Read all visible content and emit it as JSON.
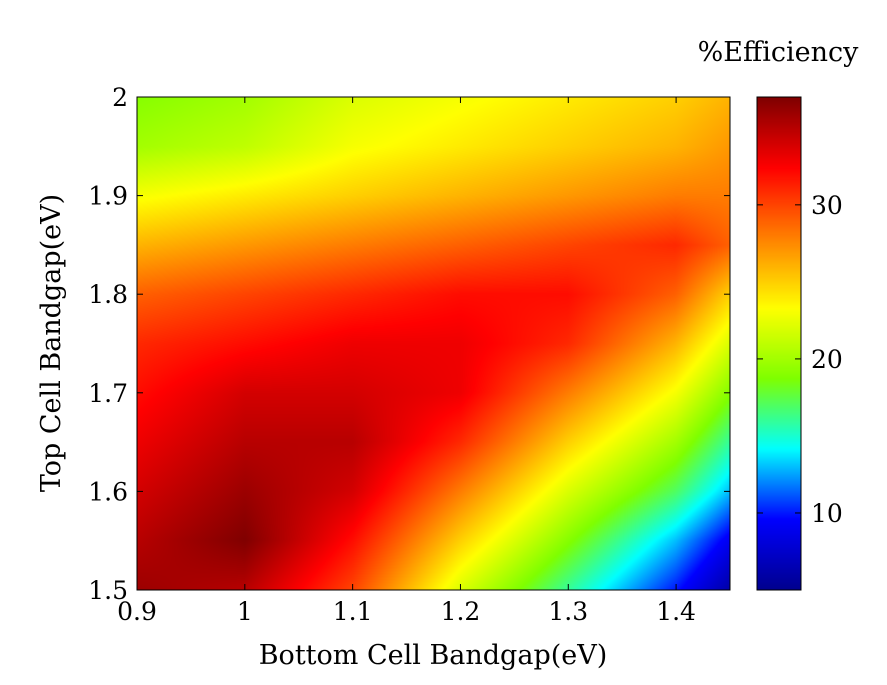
{
  "chart_data": {
    "type": "heatmap",
    "xlabel": "Bottom Cell Bandgap(eV)",
    "ylabel": "Top Cell Bandgap(eV)",
    "colorbar_label": "%Efficiency",
    "xlim": [
      0.9,
      1.45
    ],
    "ylim": [
      1.5,
      2.0
    ],
    "clim": [
      5,
      37
    ],
    "x_ticks": [
      "0.9",
      "1",
      "1.1",
      "1.2",
      "1.3",
      "1.4"
    ],
    "y_ticks": [
      "1.5",
      "1.6",
      "1.7",
      "1.8",
      "1.9",
      "2"
    ],
    "colorbar_ticks": [
      "10",
      "20",
      "30"
    ],
    "colormap": [
      "#00008f",
      "#0000ff",
      "#00ffff",
      "#7fff00",
      "#ffff00",
      "#ff8000",
      "#ff0000",
      "#800000"
    ],
    "x": [
      0.9,
      1.0,
      1.1,
      1.2,
      1.3,
      1.4,
      1.45
    ],
    "y": [
      1.5,
      1.55,
      1.6,
      1.65,
      1.7,
      1.75,
      1.8,
      1.85,
      1.9,
      1.95,
      2.0
    ],
    "values": [
      [
        36,
        35,
        30,
        22,
        16,
        10,
        6
      ],
      [
        35,
        37,
        32,
        25,
        19,
        13,
        9
      ],
      [
        34,
        36,
        34,
        28,
        22,
        17,
        13
      ],
      [
        33,
        35,
        35,
        31,
        25,
        20,
        16
      ],
      [
        32,
        34,
        34,
        33,
        28,
        23,
        19
      ],
      [
        31,
        32,
        33,
        33,
        31,
        26,
        22
      ],
      [
        29,
        30,
        31,
        32,
        32,
        29,
        25
      ],
      [
        26,
        27,
        28,
        29,
        30,
        31,
        29
      ],
      [
        23,
        24,
        25,
        26,
        27,
        28,
        28
      ],
      [
        20,
        21,
        23,
        24,
        25,
        26,
        27
      ],
      [
        19,
        20,
        22,
        23,
        24,
        25,
        26
      ]
    ]
  }
}
